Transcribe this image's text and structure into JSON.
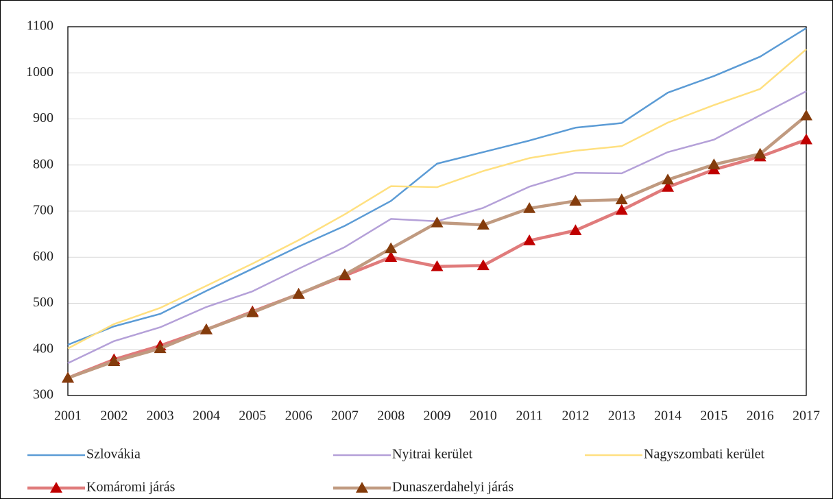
{
  "chart_data": {
    "type": "line",
    "categories": [
      "2001",
      "2002",
      "2003",
      "2004",
      "2005",
      "2006",
      "2007",
      "2008",
      "2009",
      "2010",
      "2011",
      "2012",
      "2013",
      "2014",
      "2015",
      "2016",
      "2017"
    ],
    "series": [
      {
        "name": "Szlovákia",
        "color": "#5b9bd5",
        "values": [
          410,
          450,
          477,
          527,
          575,
          623,
          668,
          722,
          803,
          828,
          853,
          881,
          891,
          957,
          993,
          1035,
          1097
        ]
      },
      {
        "name": "Nyitrai kerület",
        "color": "#b4a0d8",
        "values": [
          370,
          418,
          448,
          492,
          526,
          575,
          622,
          683,
          678,
          707,
          753,
          783,
          782,
          828,
          855,
          908,
          960
        ]
      },
      {
        "name": "Nagyszombati kerület",
        "color": "#ffe080",
        "values": [
          402,
          455,
          490,
          538,
          586,
          637,
          693,
          754,
          752,
          787,
          815,
          831,
          841,
          892,
          930,
          965,
          1051
        ]
      },
      {
        "name": "Komáromi járás",
        "color": "#e07b7b",
        "marker": "triangle",
        "marker_color": "#c00000",
        "values": [
          338,
          378,
          408,
          443,
          482,
          520,
          560,
          600,
          580,
          582,
          636,
          658,
          702,
          752,
          790,
          818,
          855
        ]
      },
      {
        "name": "Dunaszerdahelyi járás",
        "color": "#c09a80",
        "marker": "triangle",
        "marker_color": "#843c0c",
        "values": [
          338,
          374,
          402,
          443,
          480,
          520,
          562,
          619,
          675,
          670,
          706,
          722,
          725,
          768,
          801,
          824,
          907
        ]
      }
    ],
    "ylim": [
      300,
      1100
    ],
    "yticks": [
      300,
      400,
      500,
      600,
      700,
      800,
      900,
      1000,
      1100
    ],
    "grid": true
  }
}
